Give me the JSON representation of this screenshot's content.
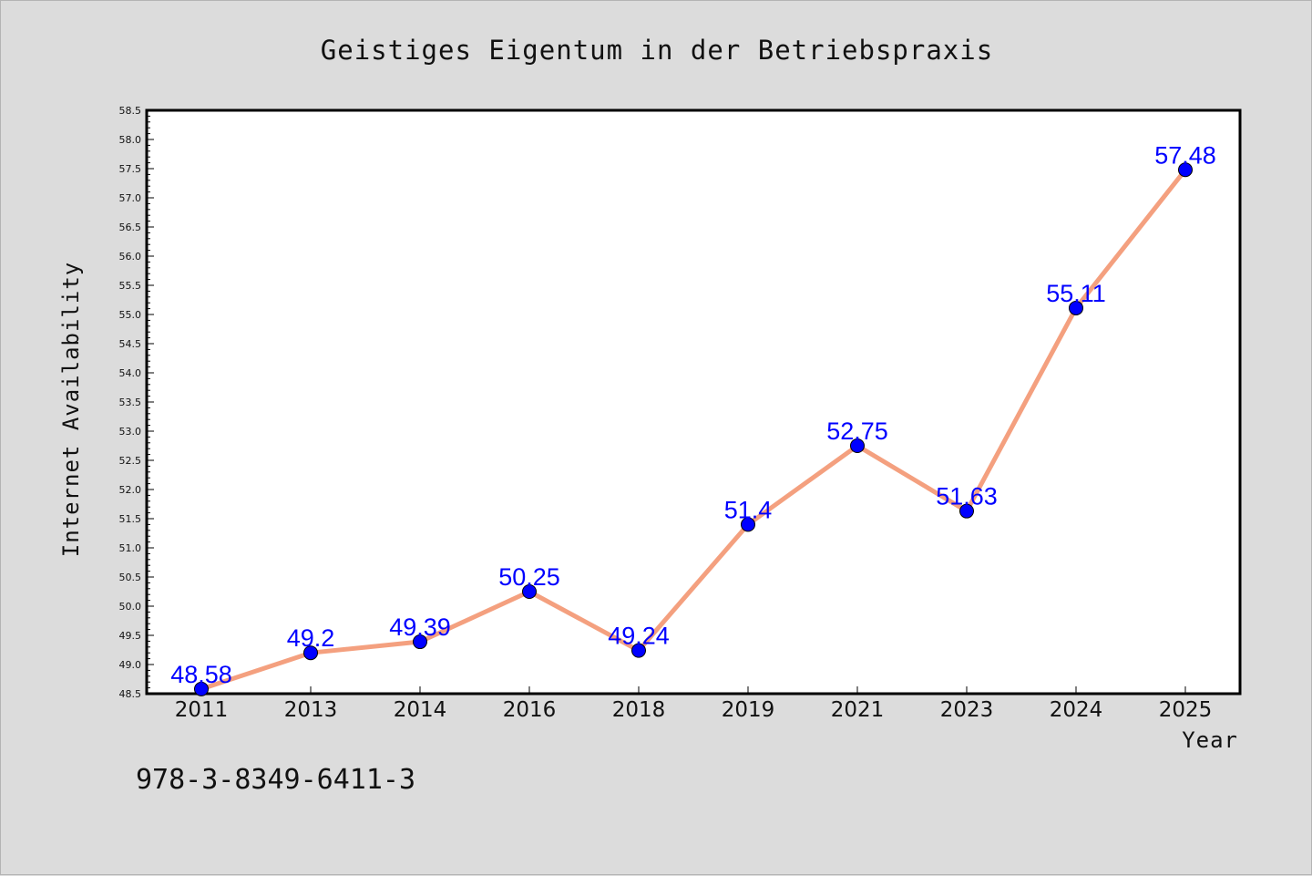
{
  "chart_data": {
    "type": "line",
    "title": "Geistiges Eigentum in der Betriebspraxis",
    "xlabel": "Year",
    "ylabel": "Internet Availability",
    "categories": [
      "2011",
      "2013",
      "2014",
      "2016",
      "2018",
      "2019",
      "2021",
      "2023",
      "2024",
      "2025"
    ],
    "values": [
      48.58,
      49.2,
      49.39,
      50.25,
      49.24,
      51.4,
      52.75,
      51.63,
      55.11,
      57.48
    ],
    "data_labels": [
      "48.58",
      "49.2",
      "49.39",
      "50.25",
      "49.24",
      "51.4",
      "52.75",
      "51.63",
      "55.11",
      "57.48"
    ],
    "ylim": [
      48.5,
      58.5
    ],
    "yticks": [
      "48.5",
      "49.0",
      "49.5",
      "50.0",
      "50.5",
      "51.0",
      "51.5",
      "52.0",
      "52.5",
      "53.0",
      "53.5",
      "54.0",
      "54.5",
      "55.0",
      "55.5",
      "56.0",
      "56.5",
      "57.0",
      "57.5",
      "58.0",
      "58.5"
    ],
    "grid": false,
    "colors": {
      "line": "#f4a07f",
      "marker": "#0000ff",
      "label": "#0000ff",
      "background": "#dcdcdc",
      "plot_area": "#ffffff"
    }
  },
  "footer": {
    "isbn": "978-3-8349-6411-3"
  }
}
